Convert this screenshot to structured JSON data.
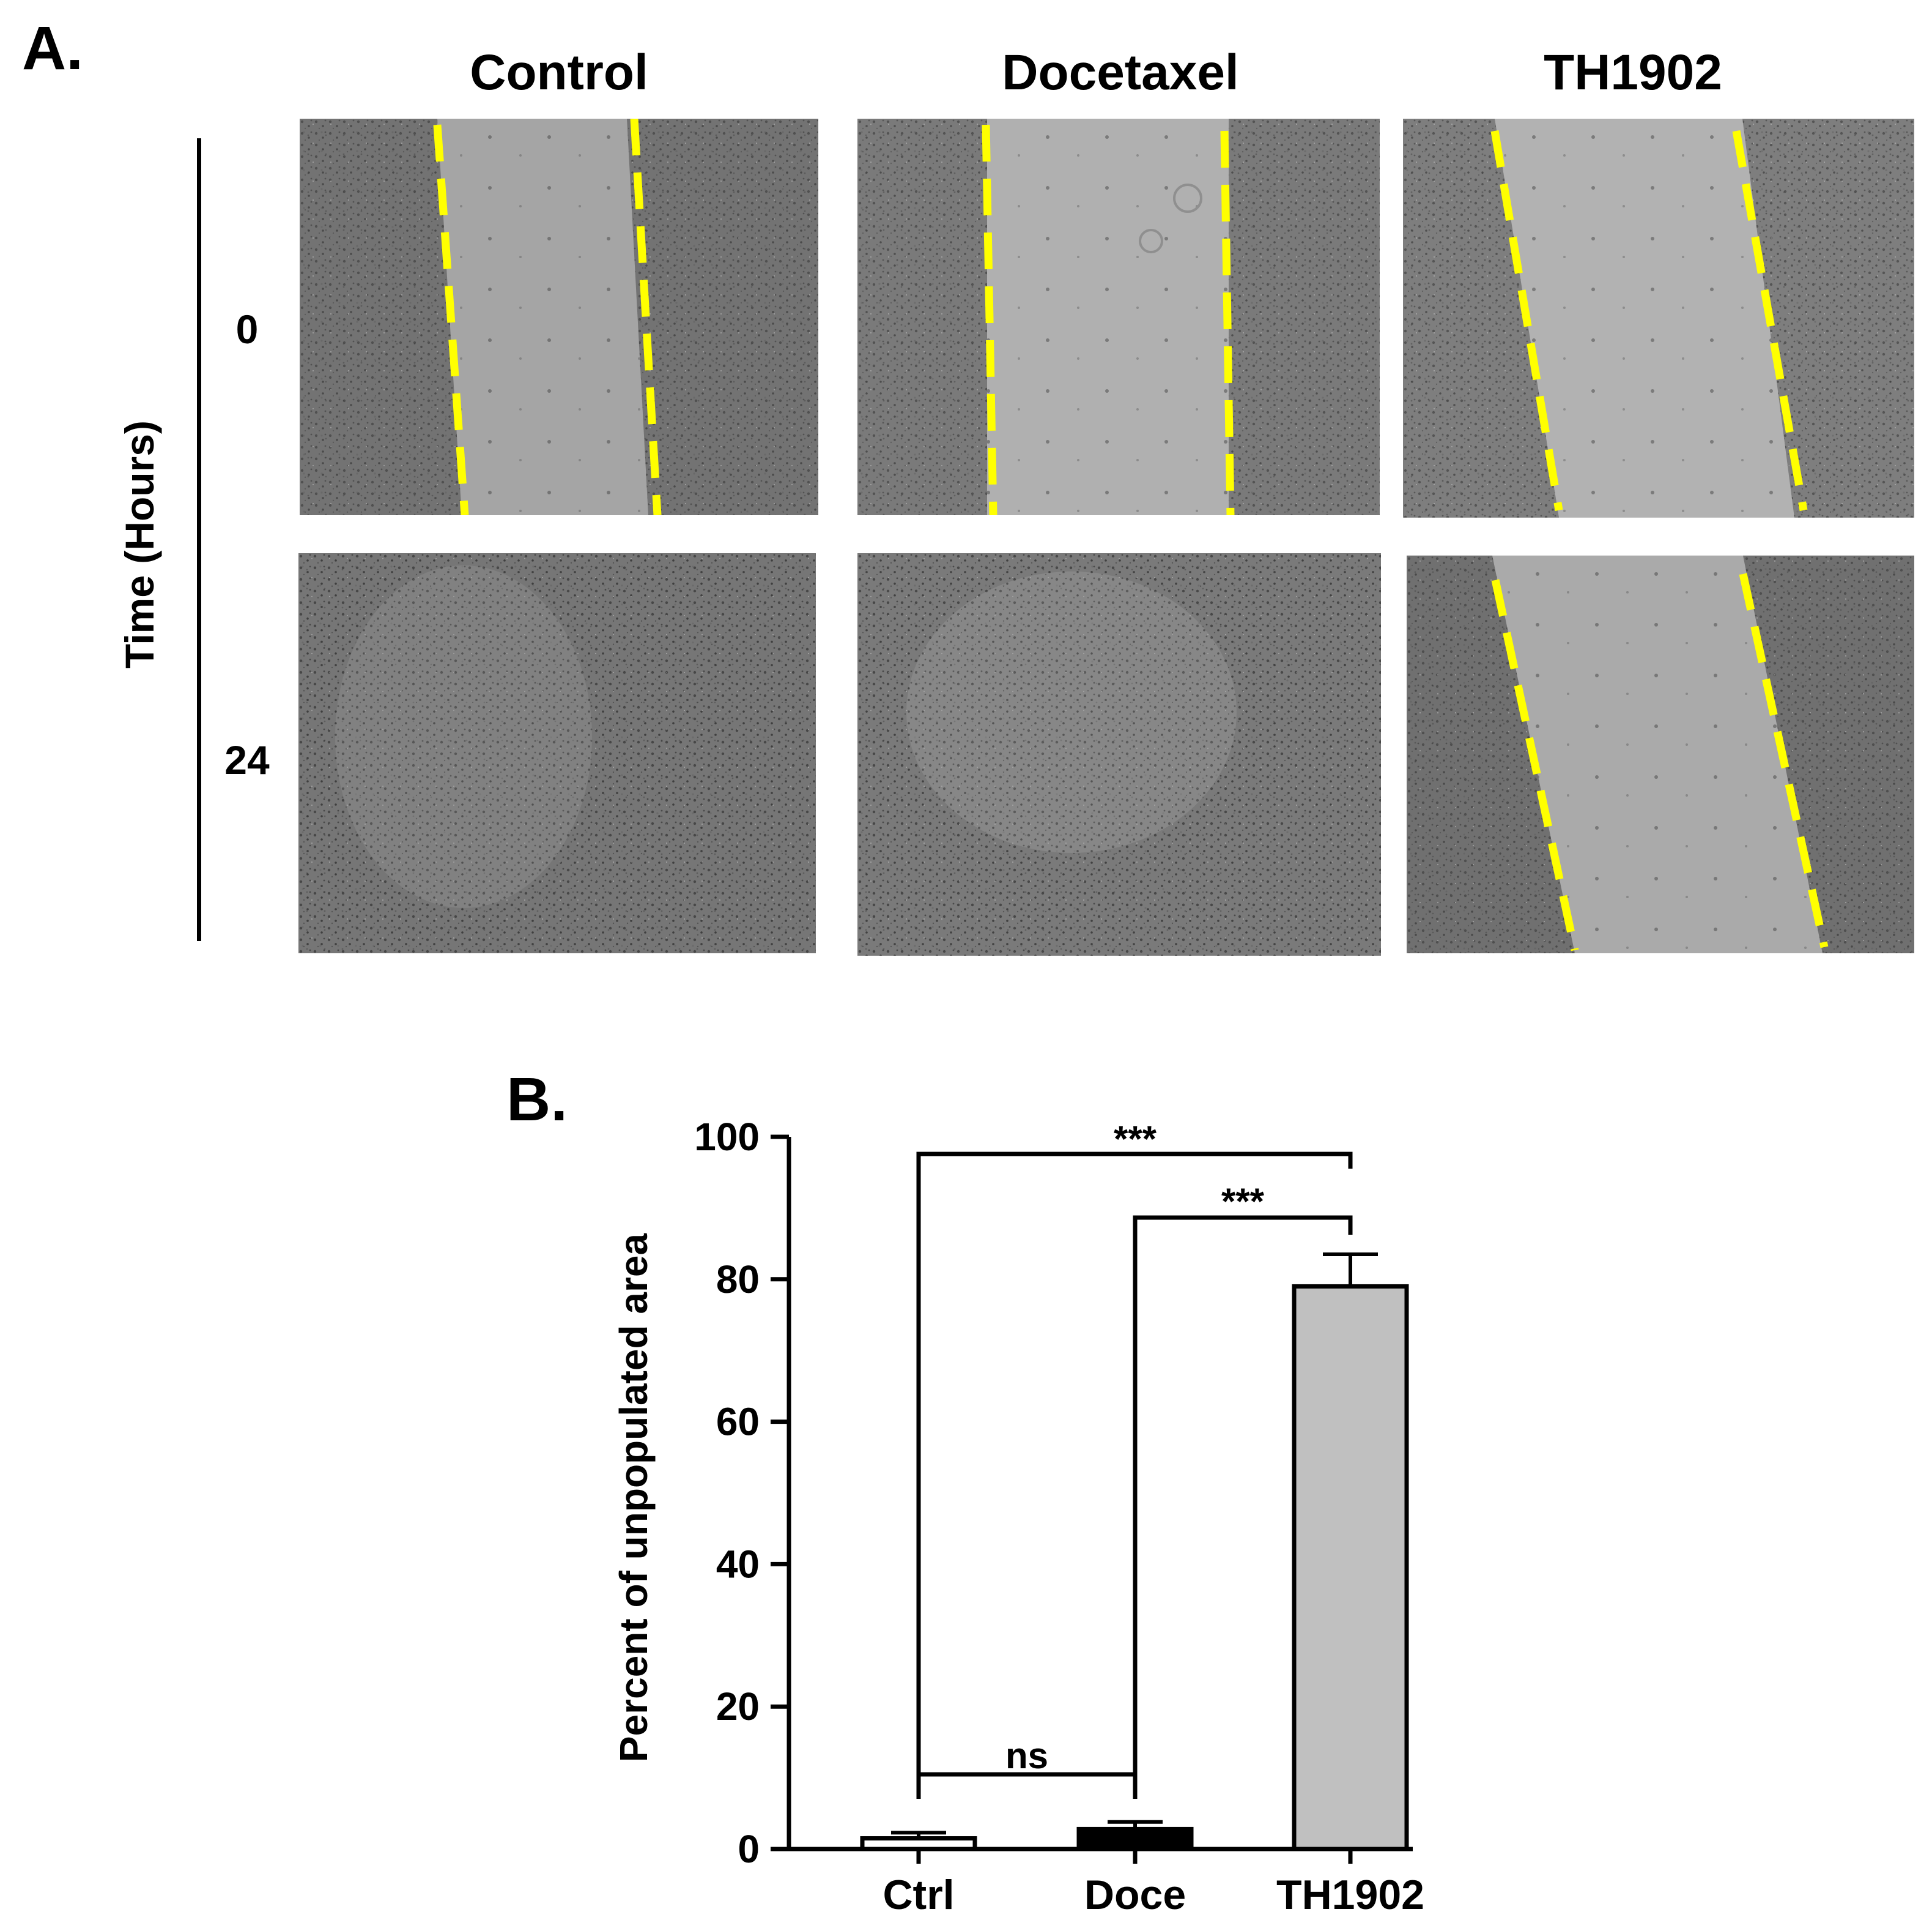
{
  "panel_a": {
    "letter": "A.",
    "columns": [
      "Control",
      "Docetaxel",
      "TH1902"
    ],
    "time_axis_title": "Time (Hours)",
    "rows": [
      "0",
      "24"
    ],
    "micrographs": [
      {
        "condition": "Control",
        "time": "0",
        "scratch_lines": true,
        "cell_color": "#6e6e6e",
        "gap_color": "#a3a3a3"
      },
      {
        "condition": "Docetaxel",
        "time": "0",
        "scratch_lines": true,
        "cell_color": "#767676",
        "gap_color": "#adadad"
      },
      {
        "condition": "TH1902",
        "time": "0",
        "scratch_lines": true,
        "cell_color": "#7a7a7a",
        "gap_color": "#b0b0b0"
      },
      {
        "condition": "Control",
        "time": "24",
        "scratch_lines": false,
        "cell_color": "#707070",
        "gap_color": "#8e8e8e"
      },
      {
        "condition": "Docetaxel",
        "time": "24",
        "scratch_lines": false,
        "cell_color": "#747474",
        "gap_color": "#8c8c8c"
      },
      {
        "condition": "TH1902",
        "time": "24",
        "scratch_lines": true,
        "cell_color": "#6c6c6c",
        "gap_color": "#a8a8a8"
      }
    ],
    "scratch_line_color": "#ffff00"
  },
  "panel_b": {
    "letter": "B."
  },
  "chart_data": {
    "type": "bar",
    "title": "",
    "xlabel": "",
    "ylabel": "Percent of unpopulated area",
    "categories": [
      "Ctrl",
      "Doce",
      "TH1902"
    ],
    "values": [
      1.5,
      2.8,
      79
    ],
    "errors": [
      0.8,
      1.0,
      4.5
    ],
    "bar_colors": [
      "#ffffff",
      "#000000",
      "#c0c0c0"
    ],
    "ylim": [
      0,
      100
    ],
    "yticks": [
      0,
      20,
      40,
      60,
      80,
      100
    ],
    "yticklabels": [
      "0",
      "20",
      "40",
      "60",
      "80",
      "100"
    ],
    "grid": false,
    "significance": [
      {
        "from": "Ctrl",
        "to": "TH1902",
        "label": "***"
      },
      {
        "from": "Doce",
        "to": "TH1902",
        "label": "***"
      },
      {
        "from": "Ctrl",
        "to": "Doce",
        "label": "ns"
      }
    ]
  }
}
